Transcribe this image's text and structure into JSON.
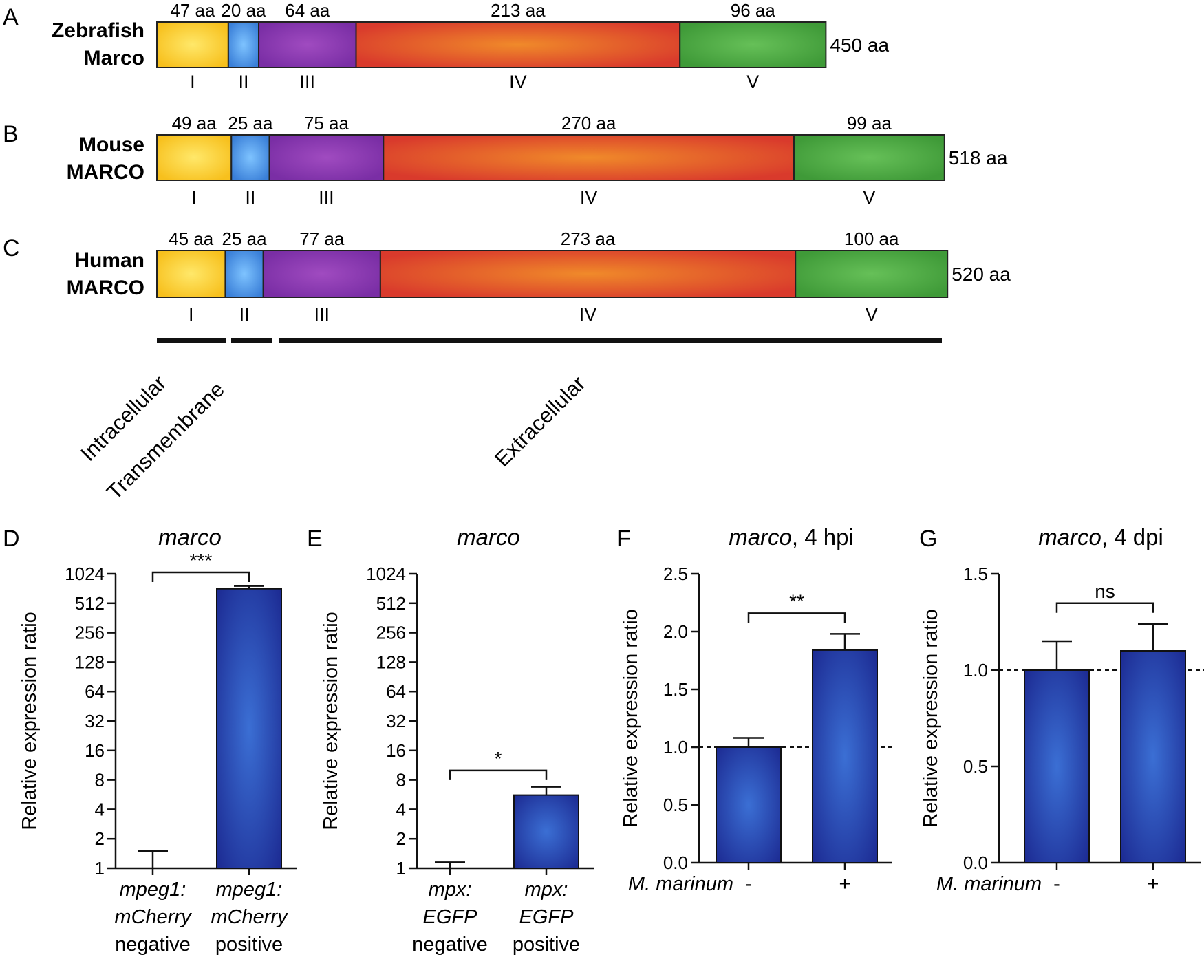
{
  "domain_structures": {
    "colors": [
      "#f7c01d",
      "#3a7fd8",
      "#7a2ea5",
      "#d93a2c",
      "#3f9a38"
    ],
    "proteins": [
      {
        "panel": "A",
        "name_lines": [
          "Zebrafish",
          "Marco"
        ],
        "total": "450 aa",
        "domains": [
          {
            "roman": "I",
            "aa": "47 aa",
            "len": 47
          },
          {
            "roman": "II",
            "aa": "20 aa",
            "len": 20
          },
          {
            "roman": "III",
            "aa": "64 aa",
            "len": 64
          },
          {
            "roman": "IV",
            "aa": "213 aa",
            "len": 213
          },
          {
            "roman": "V",
            "aa": "96 aa",
            "len": 96
          }
        ]
      },
      {
        "panel": "B",
        "name_lines": [
          "Mouse",
          "MARCO"
        ],
        "total": "518 aa",
        "domains": [
          {
            "roman": "I",
            "aa": "49 aa",
            "len": 49
          },
          {
            "roman": "II",
            "aa": "25 aa",
            "len": 25
          },
          {
            "roman": "III",
            "aa": "75 aa",
            "len": 75
          },
          {
            "roman": "IV",
            "aa": "270 aa",
            "len": 270
          },
          {
            "roman": "V",
            "aa": "99 aa",
            "len": 99
          }
        ]
      },
      {
        "panel": "C",
        "name_lines": [
          "Human",
          "MARCO"
        ],
        "total": "520 aa",
        "domains": [
          {
            "roman": "I",
            "aa": "45 aa",
            "len": 45
          },
          {
            "roman": "II",
            "aa": "25 aa",
            "len": 25
          },
          {
            "roman": "III",
            "aa": "77 aa",
            "len": 77
          },
          {
            "roman": "IV",
            "aa": "273 aa",
            "len": 273
          },
          {
            "roman": "V",
            "aa": "100 aa",
            "len": 100
          }
        ]
      }
    ],
    "regions": [
      "Intracellular",
      "Transmembrane",
      "Extracellular"
    ]
  },
  "chart_data": [
    {
      "panel": "D",
      "type": "bar",
      "title": "marco",
      "ylabel": "Relative expression ratio",
      "yscale": "log2",
      "ylim": [
        1,
        1024
      ],
      "yticks": [
        "1",
        "2",
        "4",
        "8",
        "16",
        "32",
        "64",
        "128",
        "256",
        "512",
        "1024"
      ],
      "categories": [
        [
          "mpeg1:",
          "mCherry",
          "negative"
        ],
        [
          "mpeg1:",
          "mCherry",
          "positive"
        ]
      ],
      "values": [
        1,
        720
      ],
      "error": [
        1.5,
        770
      ],
      "significance": "***"
    },
    {
      "panel": "E",
      "type": "bar",
      "title": "marco",
      "ylabel": "Relative expression ratio",
      "yscale": "log2",
      "ylim": [
        1,
        1024
      ],
      "yticks": [
        "1",
        "2",
        "4",
        "8",
        "16",
        "32",
        "64",
        "128",
        "256",
        "512",
        "1024"
      ],
      "categories": [
        [
          "mpx:",
          "EGFP",
          "negative"
        ],
        [
          "mpx:",
          "EGFP",
          "positive"
        ]
      ],
      "values": [
        1,
        5.6
      ],
      "error": [
        1.15,
        6.8
      ],
      "significance": "*"
    },
    {
      "panel": "F",
      "type": "bar",
      "title": "marco, 4 hpi",
      "ylabel": "Relative expression ratio",
      "yscale": "linear",
      "ylim": [
        0,
        2.5
      ],
      "yticks": [
        "0.0",
        "0.5",
        "1.0",
        "1.5",
        "2.0",
        "2.5"
      ],
      "xlabel": "M. marinum",
      "categories": [
        "-",
        "+"
      ],
      "values": [
        1.0,
        1.84
      ],
      "error": [
        1.08,
        1.98
      ],
      "significance": "**",
      "reference_line": 1.0
    },
    {
      "panel": "G",
      "type": "bar",
      "title": "marco, 4 dpi",
      "ylabel": "Relative expression ratio",
      "yscale": "linear",
      "ylim": [
        0,
        1.5
      ],
      "yticks": [
        "0.0",
        "0.5",
        "1.0",
        "1.5"
      ],
      "xlabel": "M. marinum",
      "categories": [
        "-",
        "+"
      ],
      "values": [
        1.0,
        1.1
      ],
      "error": [
        1.15,
        1.24
      ],
      "significance": "ns",
      "reference_line": 1.0
    }
  ]
}
